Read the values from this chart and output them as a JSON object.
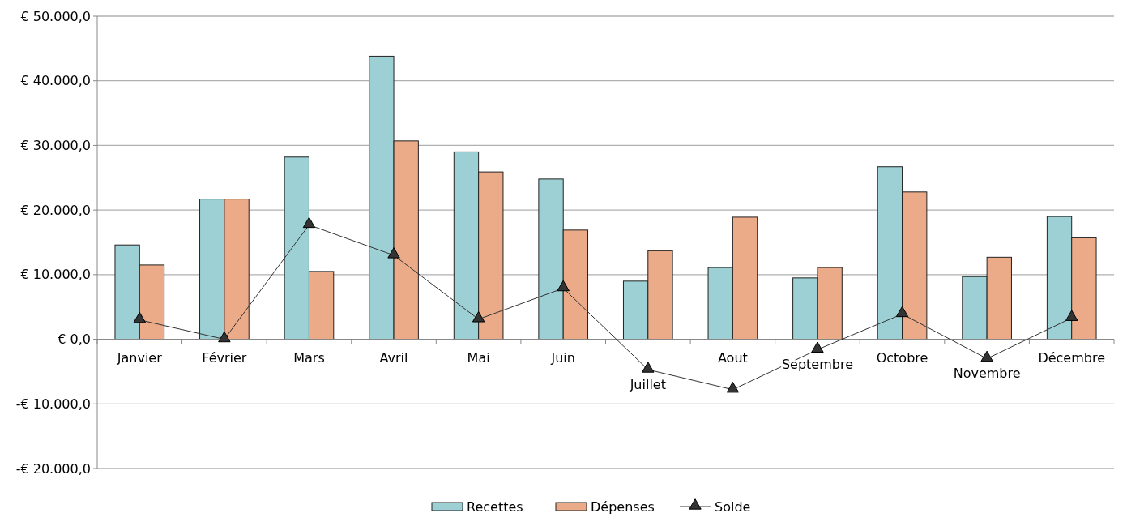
{
  "chart_data": {
    "type": "bar",
    "categories": [
      "Janvier",
      "Février",
      "Mars",
      "Avril",
      "Mai",
      "Juin",
      "Juillet",
      "Aout",
      "Septembre",
      "Octobre",
      "Novembre",
      "Décembre"
    ],
    "series": [
      {
        "name": "Recettes",
        "color": "#9dd0d4",
        "values": [
          14600,
          21700,
          28200,
          43800,
          29000,
          24800,
          9000,
          11100,
          9500,
          26700,
          9700,
          19000
        ]
      },
      {
        "name": "Dépenses",
        "color": "#ebab88",
        "values": [
          11500,
          21700,
          10500,
          30700,
          25900,
          16900,
          13700,
          18900,
          11100,
          22800,
          12700,
          15700
        ]
      },
      {
        "name": "Solde",
        "type": "line",
        "color": "#333333",
        "marker": "triangle",
        "values": [
          3000,
          0,
          17700,
          13000,
          3100,
          7900,
          -4700,
          -7800,
          -1600,
          3900,
          -3000,
          3300
        ]
      }
    ],
    "ylim": [
      -20000,
      50000
    ],
    "yticks": [
      {
        "value": -20000,
        "label": "-€ 20.000,0"
      },
      {
        "value": -10000,
        "label": "-€ 10.000,0"
      },
      {
        "value": 0,
        "label": "€ 0,0"
      },
      {
        "value": 10000,
        "label": "€ 10.000,0"
      },
      {
        "value": 20000,
        "label": "€ 20.000,0"
      },
      {
        "value": 30000,
        "label": "€ 30.000,0"
      },
      {
        "value": 40000,
        "label": "€ 40.000,0"
      },
      {
        "value": 50000,
        "label": "€ 50.000,0"
      }
    ],
    "grid": "y",
    "legend": "bottom"
  }
}
